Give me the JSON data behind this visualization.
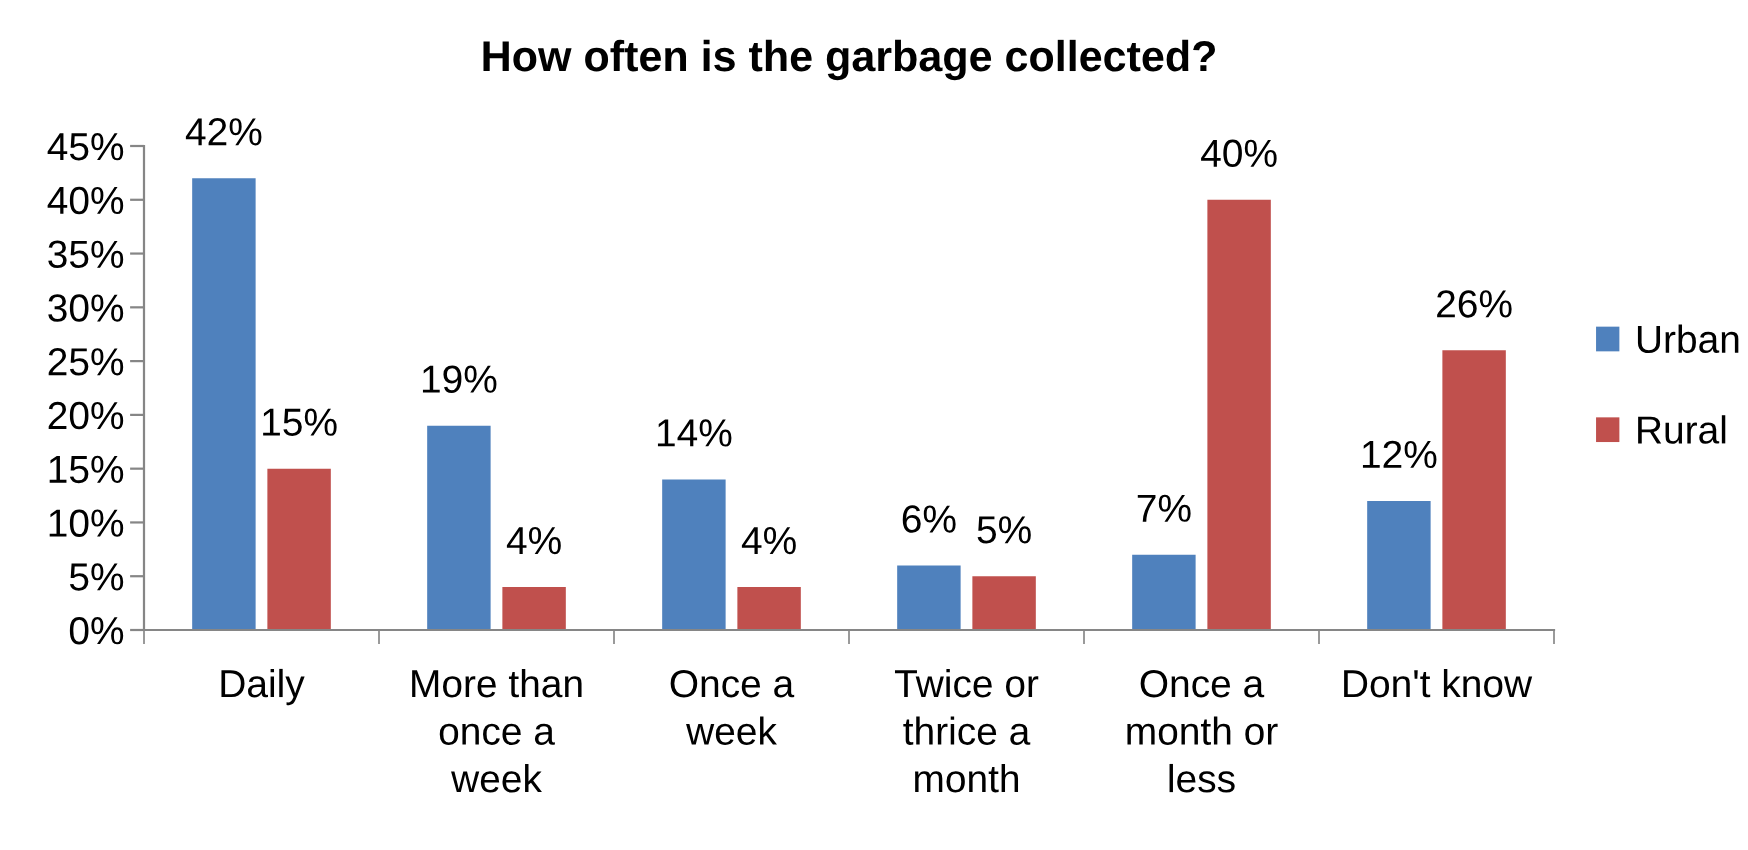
{
  "chart_data": {
    "type": "bar",
    "title": "How often is the garbage collected?",
    "categories": [
      "Daily",
      "More than\nonce a\nweek",
      "Once a\nweek",
      "Twice or\nthrice a\nmonth",
      "Once a\nmonth or\nless",
      "Don't know"
    ],
    "series": [
      {
        "name": "Urban",
        "color": "#4f81bd",
        "values": [
          42,
          19,
          14,
          6,
          7,
          12
        ],
        "value_labels": [
          "42%",
          "19%",
          "14%",
          "6%",
          "7%",
          "12%"
        ]
      },
      {
        "name": "Rural",
        "color": "#c0504d",
        "values": [
          15,
          4,
          4,
          5,
          40,
          26
        ],
        "value_labels": [
          "15%",
          "4%",
          "4%",
          "5%",
          "40%",
          "26%"
        ]
      }
    ],
    "ylim": [
      0,
      45
    ],
    "yticks": [
      {
        "value": 0,
        "label": "0%"
      },
      {
        "value": 5,
        "label": "5%"
      },
      {
        "value": 10,
        "label": "10%"
      },
      {
        "value": 15,
        "label": "15%"
      },
      {
        "value": 20,
        "label": "20%"
      },
      {
        "value": 25,
        "label": "25%"
      },
      {
        "value": 30,
        "label": "30%"
      },
      {
        "value": 35,
        "label": "35%"
      },
      {
        "value": 40,
        "label": "40%"
      },
      {
        "value": 45,
        "label": "45%"
      }
    ],
    "grid": false,
    "legend": "right"
  }
}
